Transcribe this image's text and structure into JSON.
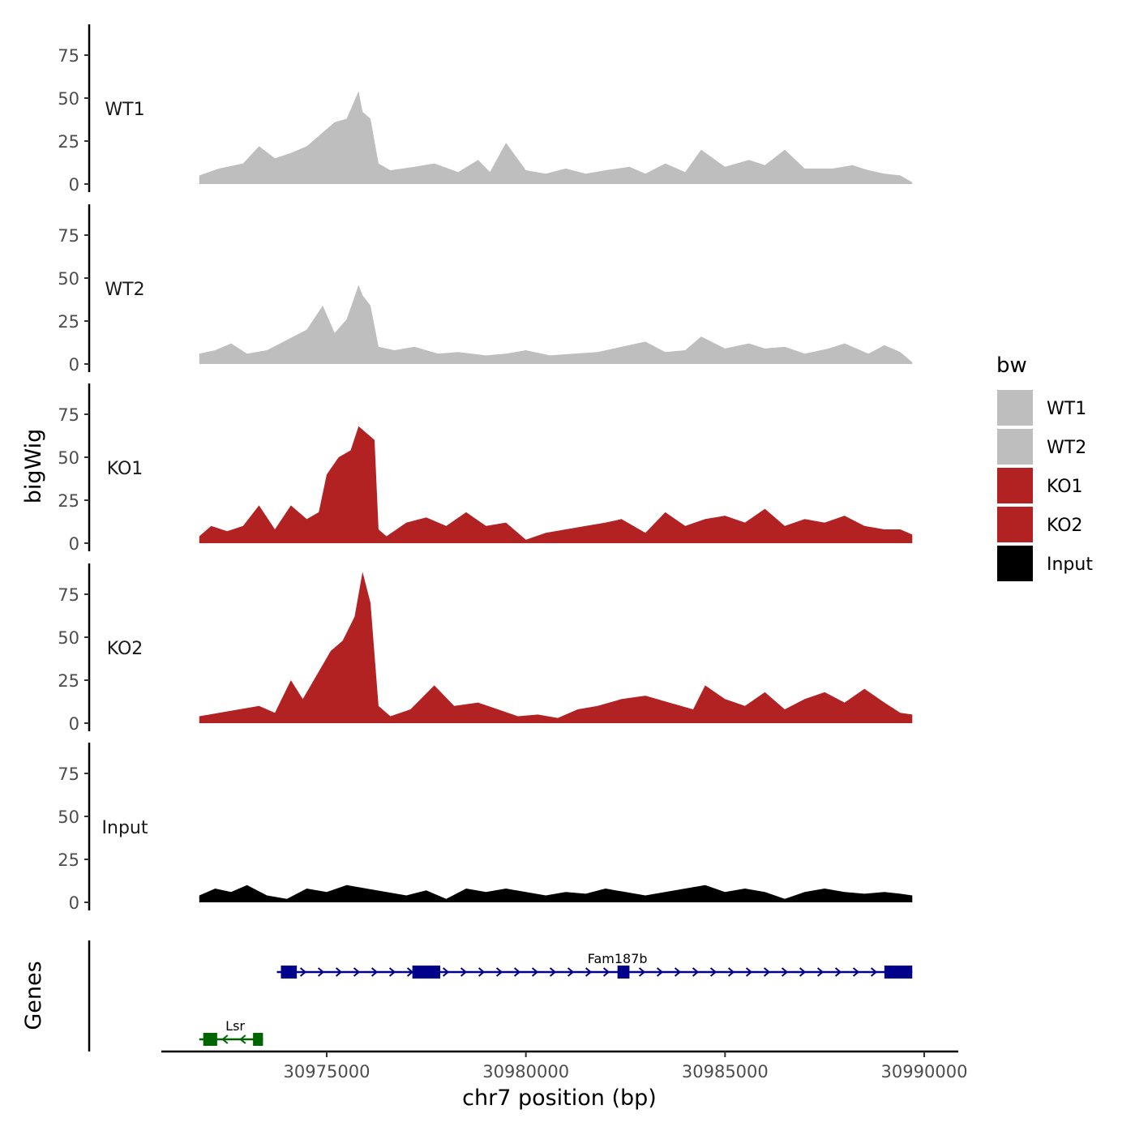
{
  "chart_data": {
    "type": "area",
    "ylabel": "bigWig",
    "xlabel": "chr7 position (bp)",
    "x_range": [
      30971000,
      30990750
    ],
    "y_range": [
      0,
      92
    ],
    "y_ticks": [
      0,
      25,
      50,
      75
    ],
    "y_tick_labels": [
      "0",
      "25",
      "50",
      "75"
    ],
    "x_ticks": [
      30975000,
      30980000,
      30985000,
      30990000
    ],
    "x_tick_labels": [
      "30975000",
      "30980000",
      "30985000",
      "30990000"
    ],
    "legend": {
      "title": "bw",
      "position": "right",
      "entries": [
        {
          "label": "WT1",
          "color": "#BEBEBE"
        },
        {
          "label": "WT2",
          "color": "#BEBEBE"
        },
        {
          "label": "KO1",
          "color": "#B22222"
        },
        {
          "label": "KO2",
          "color": "#B22222"
        },
        {
          "label": "Input",
          "color": "#000000"
        }
      ]
    },
    "tracks": [
      {
        "name": "WT1",
        "color": "#BEBEBE",
        "x": [
          30971800,
          30972300,
          30972900,
          30973300,
          30973700,
          30974100,
          30974500,
          30974900,
          30975200,
          30975500,
          30975800,
          30975900,
          30976100,
          30976300,
          30976600,
          30977200,
          30977700,
          30978300,
          30978800,
          30979100,
          30979500,
          30980000,
          30980500,
          30981000,
          30981500,
          30982000,
          30982600,
          30983000,
          30983500,
          30984000,
          30984400,
          30985000,
          30985600,
          30986000,
          30986500,
          30987000,
          30987700,
          30988200,
          30988600,
          30989000,
          30989400,
          30989700
        ],
        "values": [
          5,
          9,
          12,
          22,
          15,
          18,
          22,
          30,
          36,
          38,
          54,
          42,
          38,
          12,
          8,
          10,
          12,
          7,
          14,
          7,
          24,
          8,
          6,
          9,
          6,
          8,
          10,
          6,
          12,
          7,
          20,
          10,
          14,
          11,
          20,
          9,
          9,
          11,
          8,
          6,
          5,
          1
        ]
      },
      {
        "name": "WT2",
        "color": "#BEBEBE",
        "x": [
          30971800,
          30972200,
          30972600,
          30973000,
          30973500,
          30974000,
          30974500,
          30974900,
          30975200,
          30975500,
          30975800,
          30975900,
          30976100,
          30976300,
          30976700,
          30977200,
          30977800,
          30978300,
          30979000,
          30979500,
          30980000,
          30980600,
          30981200,
          30981800,
          30982400,
          30983000,
          30983500,
          30984000,
          30984400,
          30985000,
          30985600,
          30986000,
          30986500,
          30987000,
          30987600,
          30988000,
          30988600,
          30989000,
          30989400,
          30989700
        ],
        "values": [
          6,
          8,
          12,
          6,
          8,
          14,
          20,
          34,
          18,
          26,
          46,
          40,
          34,
          10,
          8,
          10,
          6,
          7,
          5,
          6,
          8,
          5,
          6,
          7,
          10,
          13,
          7,
          8,
          16,
          9,
          12,
          9,
          10,
          6,
          9,
          12,
          6,
          11,
          7,
          1
        ]
      },
      {
        "name": "KO1",
        "color": "#B22222",
        "x": [
          30971800,
          30972100,
          30972500,
          30972900,
          30973300,
          30973700,
          30974100,
          30974500,
          30974800,
          30975000,
          30975300,
          30975600,
          30975800,
          30976000,
          30976200,
          30976300,
          30976500,
          30977000,
          30977500,
          30978000,
          30978500,
          30979000,
          30979500,
          30980000,
          30980500,
          30981000,
          30981500,
          30982000,
          30982400,
          30983000,
          30983500,
          30984000,
          30984500,
          30985000,
          30985500,
          30986000,
          30986500,
          30987000,
          30987500,
          30988000,
          30988500,
          30989000,
          30989400,
          30989700
        ],
        "values": [
          4,
          10,
          7,
          10,
          22,
          8,
          22,
          14,
          18,
          40,
          50,
          54,
          68,
          64,
          60,
          8,
          4,
          12,
          15,
          10,
          18,
          10,
          12,
          2,
          6,
          8,
          10,
          12,
          14,
          6,
          18,
          10,
          14,
          16,
          12,
          20,
          10,
          14,
          12,
          16,
          10,
          8,
          8,
          5
        ]
      },
      {
        "name": "KO2",
        "color": "#B22222",
        "x": [
          30971800,
          30972300,
          30972800,
          30973300,
          30973700,
          30974100,
          30974400,
          30974800,
          30975100,
          30975400,
          30975700,
          30975900,
          30976100,
          30976300,
          30976600,
          30977100,
          30977700,
          30978200,
          30978800,
          30979300,
          30979800,
          30980300,
          30980800,
          30981300,
          30981800,
          30982400,
          30983000,
          30983600,
          30984200,
          30984500,
          30985000,
          30985500,
          30986000,
          30986500,
          30987000,
          30987500,
          30988000,
          30988500,
          30989000,
          30989400,
          30989700
        ],
        "values": [
          4,
          6,
          8,
          10,
          6,
          25,
          14,
          30,
          42,
          48,
          62,
          88,
          70,
          10,
          4,
          8,
          22,
          10,
          12,
          8,
          4,
          5,
          3,
          8,
          10,
          14,
          16,
          12,
          8,
          22,
          14,
          10,
          18,
          8,
          14,
          18,
          12,
          20,
          12,
          6,
          5
        ]
      },
      {
        "name": "Input",
        "color": "#000000",
        "x": [
          30971800,
          30972200,
          30972600,
          30973000,
          30973500,
          30974000,
          30974500,
          30975000,
          30975500,
          30976000,
          30976500,
          30977000,
          30977500,
          30978000,
          30978500,
          30979000,
          30979500,
          30980000,
          30980500,
          30981000,
          30981500,
          30982000,
          30982500,
          30983000,
          30983500,
          30984000,
          30984500,
          30985000,
          30985500,
          30986000,
          30986500,
          30987000,
          30987500,
          30988000,
          30988500,
          30989000,
          30989400,
          30989700
        ],
        "values": [
          4,
          8,
          6,
          10,
          4,
          2,
          8,
          6,
          10,
          8,
          6,
          4,
          7,
          2,
          8,
          6,
          8,
          6,
          4,
          6,
          5,
          8,
          6,
          4,
          6,
          8,
          10,
          6,
          8,
          6,
          2,
          6,
          8,
          6,
          5,
          6,
          5,
          4
        ]
      }
    ],
    "genes_track": {
      "label": "Genes",
      "genes": [
        {
          "name": "Lsr",
          "strand": "-",
          "start": 30971800,
          "end": 30973400,
          "color": "#006400",
          "exons": [
            [
              30971900,
              30972250
            ],
            [
              30973150,
              30973400
            ]
          ]
        },
        {
          "name": "Fam187b",
          "strand": "+",
          "start": 30973750,
          "end": 30989700,
          "color": "#00008B",
          "exons": [
            [
              30973850,
              30974250
            ],
            [
              30977150,
              30977850
            ],
            [
              30982300,
              30982600
            ],
            [
              30989000,
              30989700
            ]
          ]
        }
      ]
    }
  }
}
